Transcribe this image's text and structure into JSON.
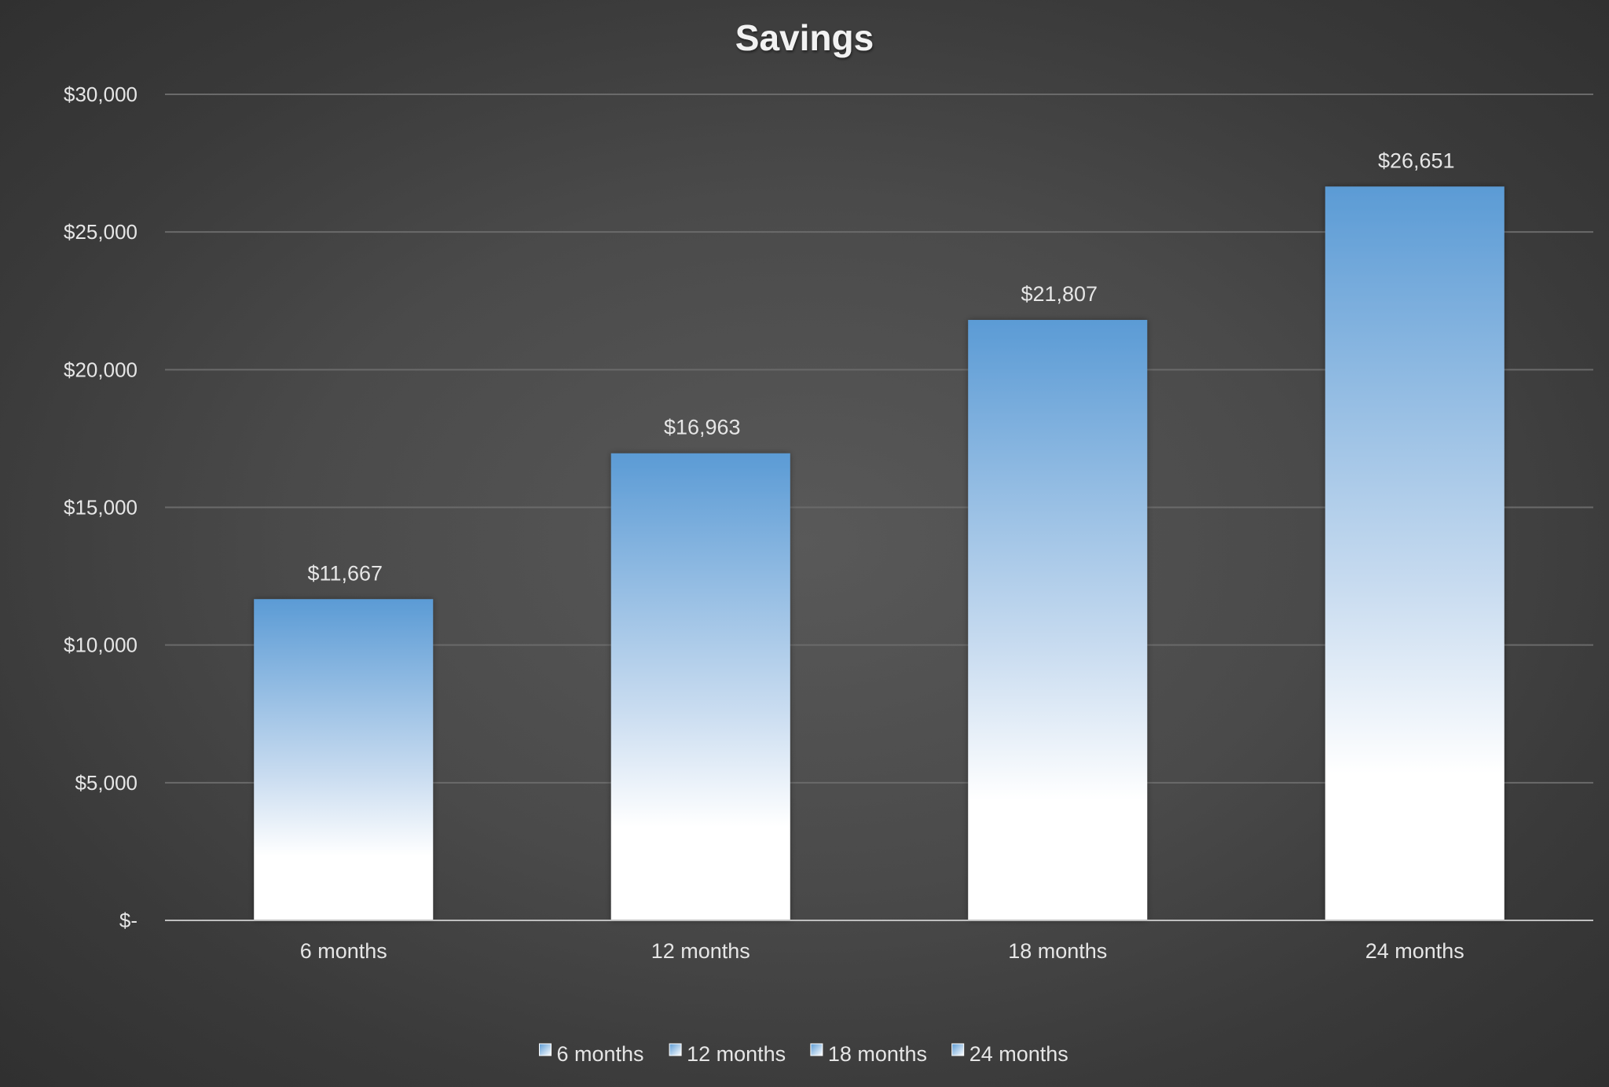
{
  "chart_data": {
    "type": "bar",
    "title": "Savings",
    "categories": [
      "6 months",
      "12 months",
      "18 months",
      "24 months"
    ],
    "series": [
      {
        "values": [
          11667,
          16963,
          21807,
          26651
        ]
      }
    ],
    "data_labels": [
      "$11,667",
      "$16,963",
      "$21,807",
      "$26,651"
    ],
    "ylim": [
      0,
      30000
    ],
    "yticks": [
      0,
      5000,
      10000,
      15000,
      20000,
      25000,
      30000
    ],
    "ytick_labels": [
      "$-",
      "$5,000",
      "$10,000",
      "$15,000",
      "$20,000",
      "$25,000",
      "$30,000"
    ],
    "legend": {
      "position": "bottom",
      "entries": [
        "6 months",
        "12 months",
        "18 months",
        "24 months"
      ]
    },
    "grid": true,
    "colors": {
      "bar_top": "#5b9bd5",
      "bar_bottom": "#ffffff",
      "text": "#e6e6e6",
      "title": "#f2f2f2",
      "grid": "#6a6a6a",
      "axis": "#bfbfbf"
    }
  }
}
